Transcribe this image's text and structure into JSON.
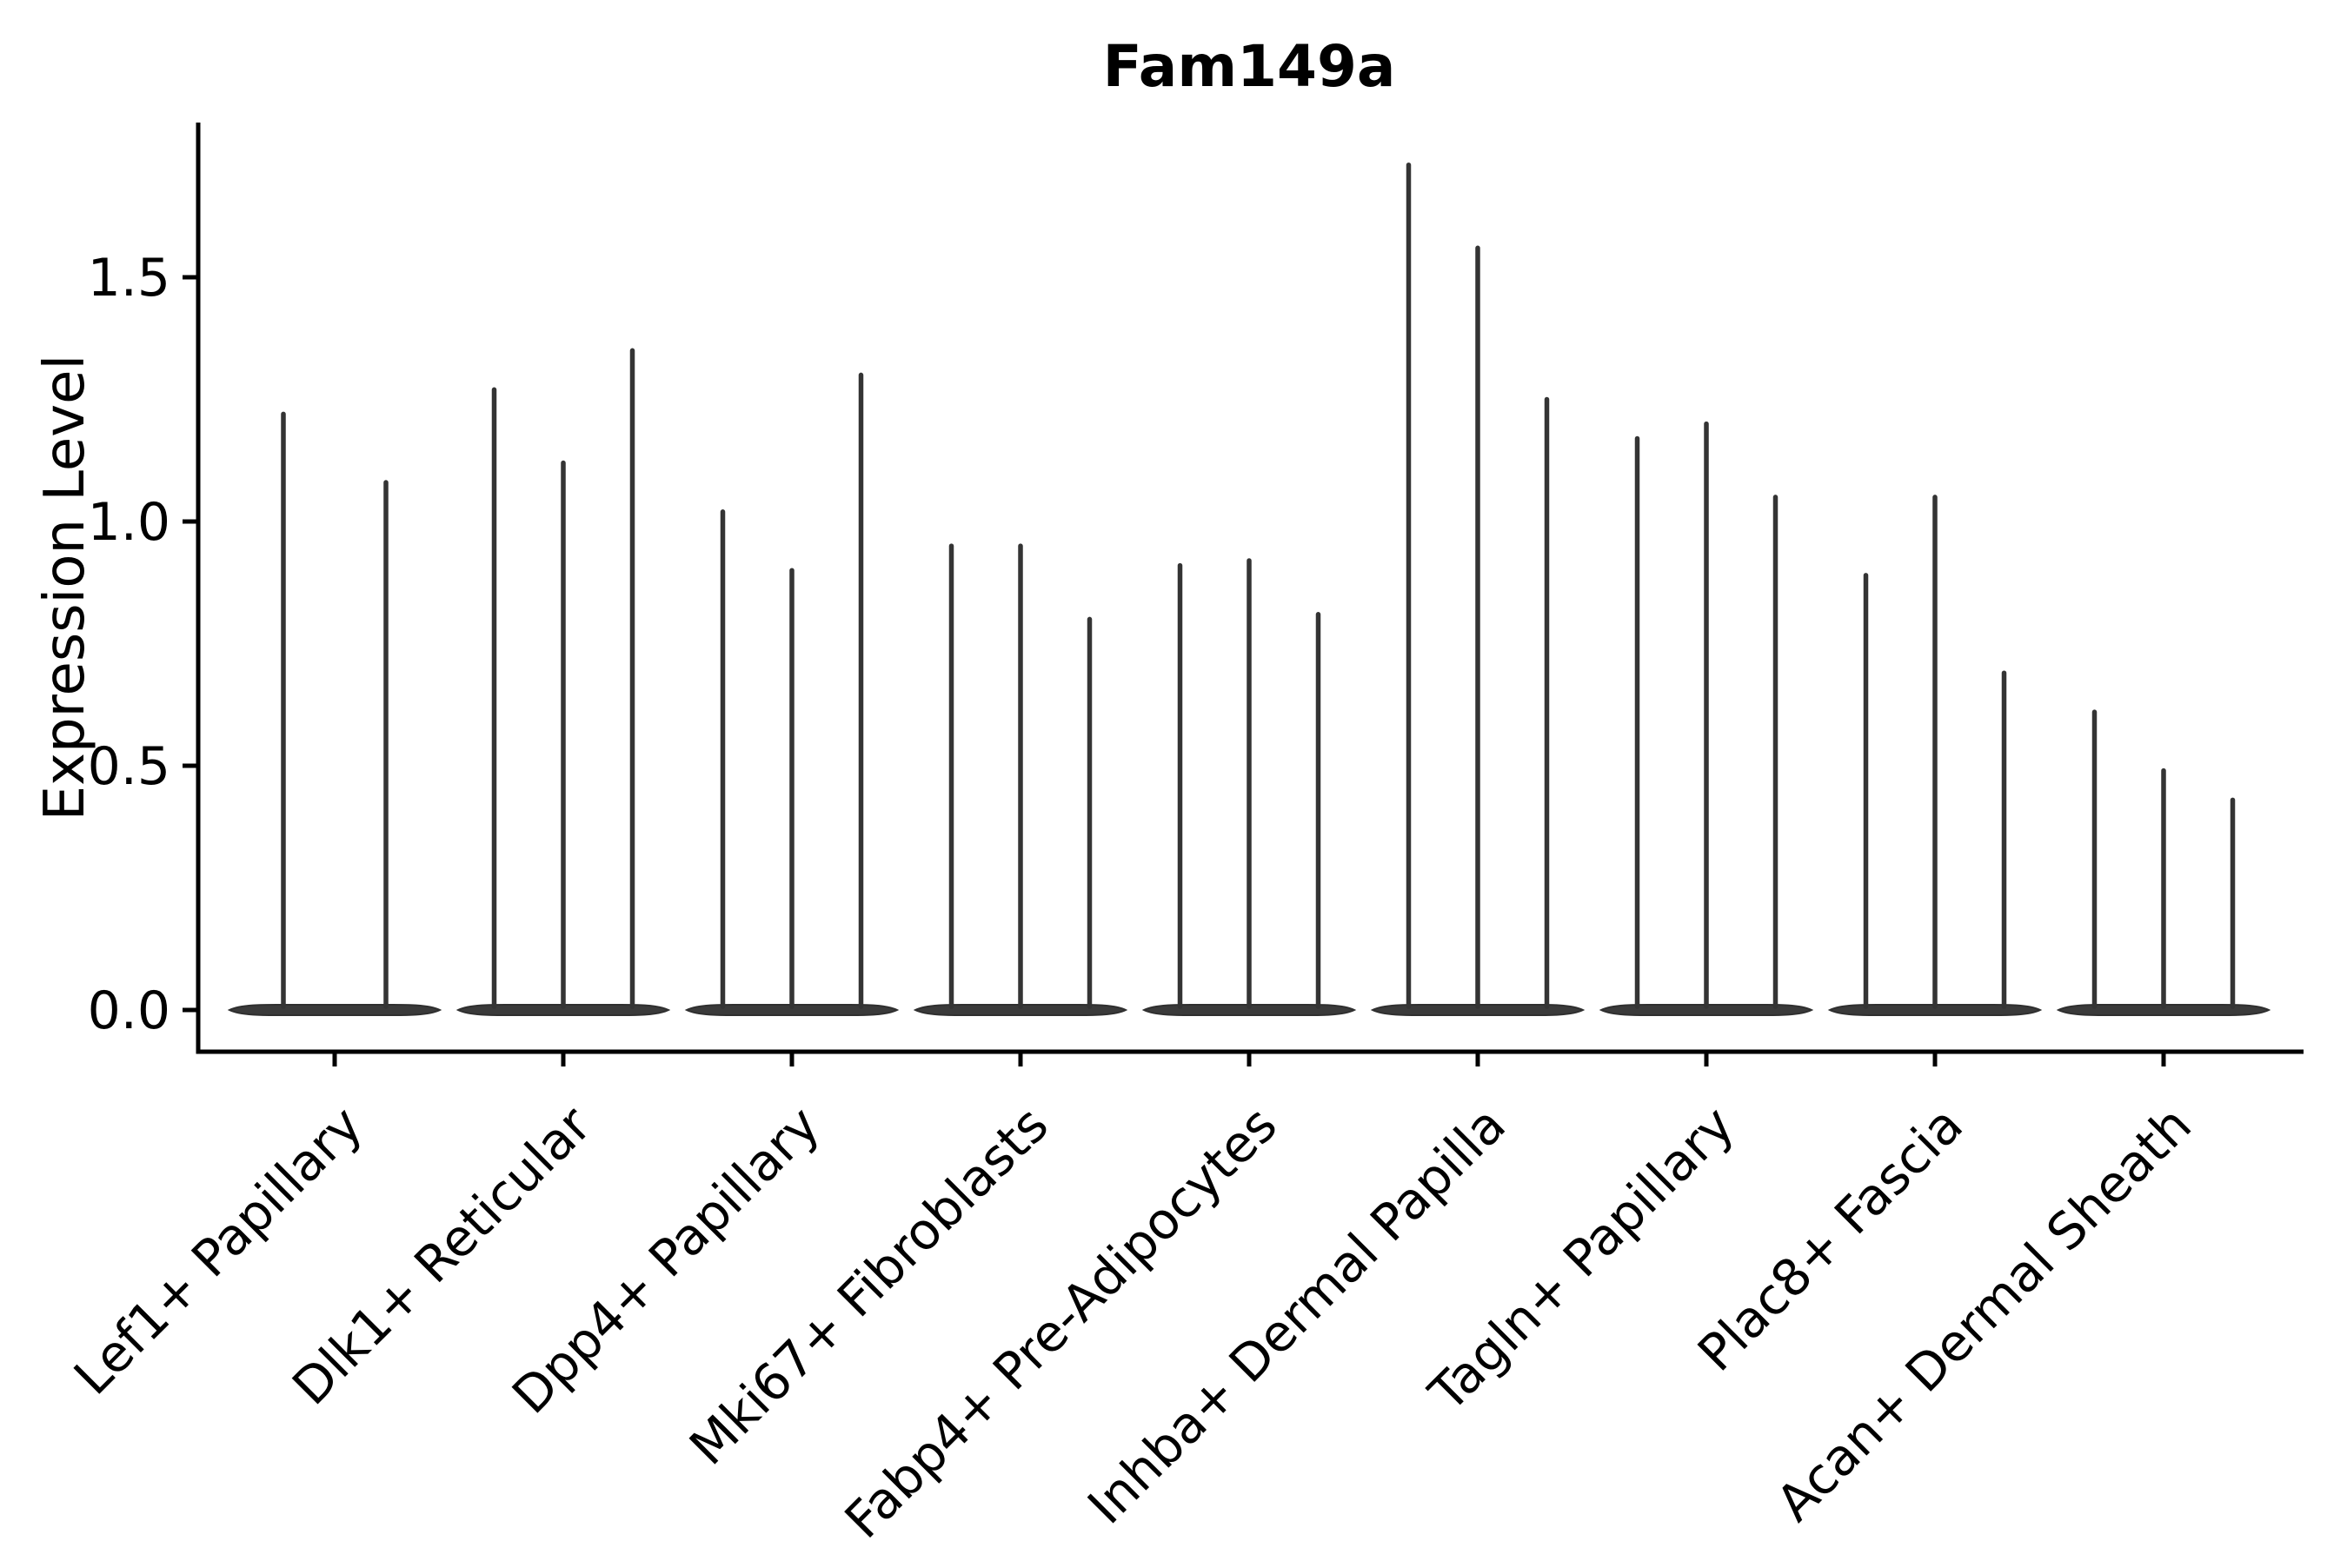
{
  "chart_data": {
    "type": "violin",
    "title": "Fam149a",
    "ylabel": "Expression Level",
    "xlabel": "",
    "ytick_labels": [
      "0.0",
      "0.5",
      "1.0",
      "1.5"
    ],
    "ytick_values": [
      0.0,
      0.5,
      1.0,
      1.5
    ],
    "ylim": [
      -0.085,
      1.82
    ],
    "grid": false,
    "legend": "none",
    "categories": [
      "Lef1+ Papillary",
      "Dlk1+ Reticular",
      "Dpp4+ Papillary",
      "Mki67+ Fibroblasts",
      "Fabp4+ Pre-Adipocytes",
      "Inhba+ Dermal Papilla",
      "Tagln+ Papillary",
      "Plac8+ Fascia",
      "Acan+ Dermal Sheath"
    ],
    "groups": [
      {
        "category": "Lef1+ Papillary",
        "violin_maxima": [
          1.22,
          1.08
        ]
      },
      {
        "category": "Dlk1+ Reticular",
        "violin_maxima": [
          1.27,
          1.12,
          1.35
        ]
      },
      {
        "category": "Dpp4+ Papillary",
        "violin_maxima": [
          1.02,
          0.9,
          1.3
        ]
      },
      {
        "category": "Mki67+ Fibroblasts",
        "violin_maxima": [
          0.95,
          0.95,
          0.8
        ]
      },
      {
        "category": "Fabp4+ Pre-Adipocytes",
        "violin_maxima": [
          0.91,
          0.92,
          0.81
        ]
      },
      {
        "category": "Inhba+ Dermal Papilla",
        "violin_maxima": [
          1.73,
          1.56,
          1.25
        ]
      },
      {
        "category": "Tagln+ Papillary",
        "violin_maxima": [
          1.17,
          1.2,
          1.05
        ]
      },
      {
        "category": "Plac8+ Fascia",
        "violin_maxima": [
          0.89,
          1.05,
          0.69
        ]
      },
      {
        "category": "Acan+ Dermal Sheath",
        "violin_maxima": [
          0.61,
          0.49,
          0.43
        ]
      }
    ],
    "colors": {
      "violin": "#343434",
      "violin_base_fill": "#3a3a3a",
      "violin_base_edge": "#2f2f2f",
      "axis": "#000000",
      "text": "#000000",
      "background": "#ffffff"
    }
  }
}
